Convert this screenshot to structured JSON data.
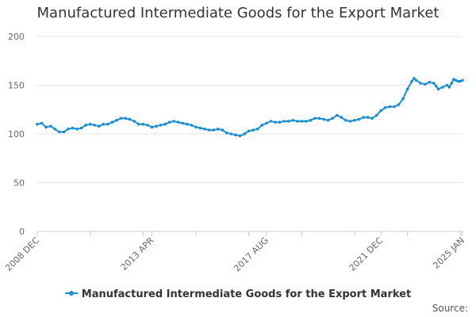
{
  "colors": {
    "series": "#1a8fd1",
    "grid": "#e6e6e6",
    "axis": "#cccccc",
    "text": "#666666"
  },
  "source_label": "Source:",
  "chart_data": {
    "type": "line",
    "title": "Manufactured Intermediate Goods for the Export Market",
    "xlabel": "",
    "ylabel": "",
    "ylim": [
      0,
      200
    ],
    "yticks": [
      0,
      50,
      100,
      150,
      200
    ],
    "xlim": [
      "2008-12",
      "2025-01"
    ],
    "xticks": [
      "2008 DEC",
      "2013 APR",
      "2017 AUG",
      "2021 DEC",
      "2025 JAN"
    ],
    "grid": true,
    "legend_position": "bottom",
    "series": [
      {
        "name": "Manufactured Intermediate Goods for the Export Market",
        "points": [
          [
            "2008-12",
            110
          ],
          [
            "2009-02",
            111
          ],
          [
            "2009-04",
            107
          ],
          [
            "2009-06",
            108
          ],
          [
            "2009-08",
            105
          ],
          [
            "2009-10",
            102
          ],
          [
            "2009-12",
            102
          ],
          [
            "2010-02",
            105
          ],
          [
            "2010-04",
            106
          ],
          [
            "2010-06",
            105
          ],
          [
            "2010-08",
            106
          ],
          [
            "2010-10",
            109
          ],
          [
            "2010-12",
            110
          ],
          [
            "2011-02",
            109
          ],
          [
            "2011-04",
            108
          ],
          [
            "2011-06",
            110
          ],
          [
            "2011-08",
            110
          ],
          [
            "2011-10",
            112
          ],
          [
            "2011-12",
            114
          ],
          [
            "2012-02",
            116
          ],
          [
            "2012-04",
            116
          ],
          [
            "2012-06",
            115
          ],
          [
            "2012-08",
            113
          ],
          [
            "2012-10",
            110
          ],
          [
            "2012-12",
            110
          ],
          [
            "2013-02",
            109
          ],
          [
            "2013-04",
            107
          ],
          [
            "2013-06",
            108
          ],
          [
            "2013-08",
            109
          ],
          [
            "2013-10",
            110
          ],
          [
            "2013-12",
            112
          ],
          [
            "2014-02",
            113
          ],
          [
            "2014-04",
            112
          ],
          [
            "2014-06",
            111
          ],
          [
            "2014-08",
            110
          ],
          [
            "2014-10",
            109
          ],
          [
            "2014-12",
            107
          ],
          [
            "2015-02",
            106
          ],
          [
            "2015-04",
            105
          ],
          [
            "2015-06",
            104
          ],
          [
            "2015-08",
            104
          ],
          [
            "2015-10",
            105
          ],
          [
            "2015-12",
            104
          ],
          [
            "2016-02",
            101
          ],
          [
            "2016-04",
            100
          ],
          [
            "2016-06",
            99
          ],
          [
            "2016-08",
            98
          ],
          [
            "2016-10",
            100
          ],
          [
            "2016-12",
            103
          ],
          [
            "2017-02",
            104
          ],
          [
            "2017-04",
            105
          ],
          [
            "2017-06",
            109
          ],
          [
            "2017-08",
            111
          ],
          [
            "2017-10",
            113
          ],
          [
            "2017-12",
            112
          ],
          [
            "2018-02",
            112
          ],
          [
            "2018-04",
            113
          ],
          [
            "2018-06",
            113
          ],
          [
            "2018-08",
            114
          ],
          [
            "2018-10",
            113
          ],
          [
            "2018-12",
            113
          ],
          [
            "2019-02",
            113
          ],
          [
            "2019-04",
            114
          ],
          [
            "2019-06",
            116
          ],
          [
            "2019-08",
            116
          ],
          [
            "2019-10",
            115
          ],
          [
            "2019-12",
            114
          ],
          [
            "2020-02",
            116
          ],
          [
            "2020-04",
            119
          ],
          [
            "2020-06",
            117
          ],
          [
            "2020-08",
            114
          ],
          [
            "2020-10",
            113
          ],
          [
            "2020-12",
            114
          ],
          [
            "2021-02",
            115
          ],
          [
            "2021-04",
            117
          ],
          [
            "2021-06",
            117
          ],
          [
            "2021-08",
            116
          ],
          [
            "2021-10",
            119
          ],
          [
            "2021-12",
            124
          ],
          [
            "2022-02",
            127
          ],
          [
            "2022-04",
            128
          ],
          [
            "2022-06",
            128
          ],
          [
            "2022-08",
            130
          ],
          [
            "2022-10",
            136
          ],
          [
            "2022-12",
            146
          ],
          [
            "2023-02",
            154
          ],
          [
            "2023-03",
            157
          ],
          [
            "2023-04",
            155
          ],
          [
            "2023-06",
            152
          ],
          [
            "2023-08",
            151
          ],
          [
            "2023-10",
            153
          ],
          [
            "2023-12",
            152
          ],
          [
            "2024-01",
            149
          ],
          [
            "2024-02",
            146
          ],
          [
            "2024-04",
            148
          ],
          [
            "2024-06",
            150
          ],
          [
            "2024-07",
            148
          ],
          [
            "2024-08",
            152
          ],
          [
            "2024-09",
            156
          ],
          [
            "2024-10",
            155
          ],
          [
            "2024-11",
            154
          ],
          [
            "2024-12",
            154
          ],
          [
            "2025-01",
            155
          ]
        ]
      }
    ]
  }
}
